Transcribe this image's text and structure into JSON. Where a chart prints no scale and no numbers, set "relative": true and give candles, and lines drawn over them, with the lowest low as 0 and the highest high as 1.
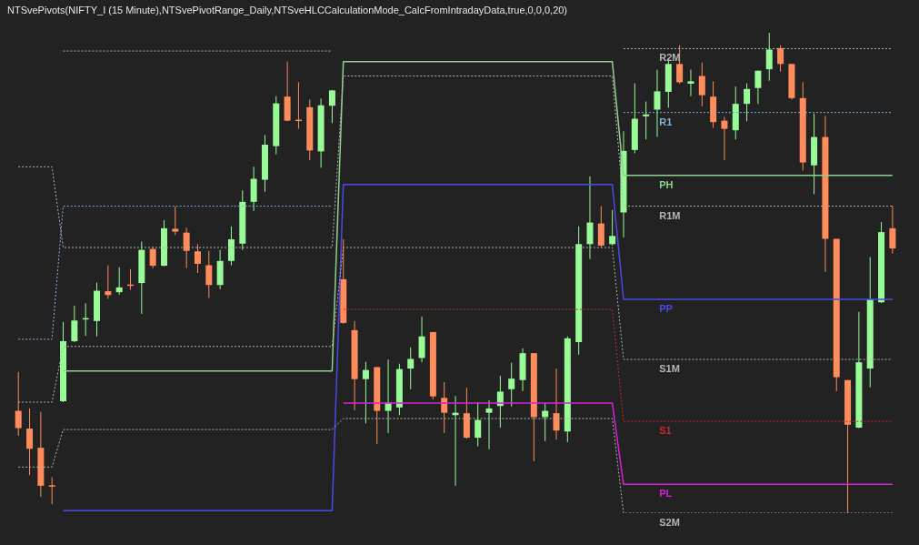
{
  "chart_data": {
    "type": "candlestick",
    "title": "NTSvePivots(NIFTY_I (15 Minute),NTSvePivotRange_Daily,NTSveHLCCalculationMode_CalcFromIntradayData,true,0,0,0,20)",
    "relative": true,
    "categories": [
      null,
      null,
      null,
      null,
      null,
      null,
      null,
      null,
      null,
      null,
      null,
      null,
      null,
      null,
      null,
      null,
      null,
      null,
      null,
      null,
      null,
      null,
      null,
      null,
      null,
      null,
      null,
      null,
      null,
      null,
      null,
      null,
      null,
      null,
      null,
      null,
      null,
      null,
      null,
      null,
      null,
      null,
      null,
      null,
      null,
      null,
      null,
      null,
      null,
      null,
      null,
      null,
      null,
      null,
      null,
      null,
      null,
      null,
      null,
      null,
      null,
      null,
      null,
      null,
      null,
      null,
      null,
      null,
      null,
      null,
      null,
      null,
      null,
      null,
      null,
      null,
      null,
      null,
      null
    ],
    "ohlc": [
      [
        0.213,
        0.294,
        0.161,
        0.177
      ],
      [
        0.176,
        0.218,
        0.079,
        0.134
      ],
      [
        0.136,
        0.211,
        0.034,
        0.057
      ],
      [
        0.058,
        0.075,
        0.019,
        0.057
      ],
      [
        0.233,
        0.398,
        0.231,
        0.358
      ],
      [
        0.358,
        0.432,
        0.356,
        0.401
      ],
      [
        0.404,
        0.437,
        0.369,
        0.406
      ],
      [
        0.4,
        0.48,
        0.368,
        0.463
      ],
      [
        0.462,
        0.516,
        0.446,
        0.454
      ],
      [
        0.46,
        0.512,
        0.455,
        0.47
      ],
      [
        0.476,
        0.508,
        0.465,
        0.475
      ],
      [
        0.479,
        0.565,
        0.415,
        0.548
      ],
      [
        0.55,
        0.555,
        0.51,
        0.515
      ],
      [
        0.515,
        0.61,
        0.514,
        0.593
      ],
      [
        0.592,
        0.638,
        0.579,
        0.586
      ],
      [
        0.584,
        0.594,
        0.51,
        0.546
      ],
      [
        0.545,
        0.56,
        0.5,
        0.519
      ],
      [
        0.516,
        0.546,
        0.448,
        0.475
      ],
      [
        0.475,
        0.548,
        0.466,
        0.525
      ],
      [
        0.525,
        0.597,
        0.516,
        0.57
      ],
      [
        0.561,
        0.672,
        0.548,
        0.648
      ],
      [
        0.648,
        0.721,
        0.629,
        0.696
      ],
      [
        0.694,
        0.787,
        0.669,
        0.767
      ],
      [
        0.764,
        0.868,
        0.747,
        0.853
      ],
      [
        0.867,
        0.94,
        0.816,
        0.817
      ],
      [
        0.819,
        0.897,
        0.8,
        0.818
      ],
      [
        0.845,
        0.861,
        0.735,
        0.755
      ],
      [
        0.753,
        0.863,
        0.719,
        0.849
      ],
      [
        0.848,
        0.881,
        0.812,
        0.88
      ],
      [
        0.487,
        0.57,
        0.394,
        0.396
      ],
      [
        0.381,
        0.4,
        0.214,
        0.279
      ],
      [
        0.279,
        0.315,
        0.187,
        0.298
      ],
      [
        0.304,
        0.304,
        0.144,
        0.213
      ],
      [
        0.213,
        0.32,
        0.167,
        0.23
      ],
      [
        0.22,
        0.311,
        0.204,
        0.3
      ],
      [
        0.301,
        0.345,
        0.258,
        0.321
      ],
      [
        0.323,
        0.409,
        0.314,
        0.368
      ],
      [
        0.377,
        0.377,
        0.237,
        0.243
      ],
      [
        0.24,
        0.273,
        0.167,
        0.209
      ],
      [
        0.204,
        0.244,
        0.057,
        0.209
      ],
      [
        0.208,
        0.261,
        0.155,
        0.157
      ],
      [
        0.157,
        0.231,
        0.139,
        0.194
      ],
      [
        0.209,
        0.235,
        0.133,
        0.218
      ],
      [
        0.223,
        0.286,
        0.178,
        0.253
      ],
      [
        0.258,
        0.313,
        0.222,
        0.28
      ],
      [
        0.277,
        0.343,
        0.254,
        0.333
      ],
      [
        0.333,
        0.333,
        0.108,
        0.2
      ],
      [
        0.2,
        0.229,
        0.15,
        0.213
      ],
      [
        0.208,
        0.301,
        0.153,
        0.172
      ],
      [
        0.17,
        0.368,
        0.148,
        0.364
      ],
      [
        0.356,
        0.597,
        0.33,
        0.56
      ],
      [
        0.56,
        0.701,
        0.529,
        0.605
      ],
      [
        0.603,
        0.639,
        0.553,
        0.557
      ],
      [
        0.56,
        0.631,
        0.557,
        0.577
      ],
      [
        0.626,
        0.795,
        0.574,
        0.754
      ],
      [
        0.756,
        0.895,
        0.749,
        0.821
      ],
      [
        0.826,
        0.857,
        0.778,
        0.83
      ],
      [
        0.84,
        0.923,
        0.783,
        0.878
      ],
      [
        0.877,
        0.947,
        0.844,
        0.935
      ],
      [
        0.935,
        0.974,
        0.894,
        0.897
      ],
      [
        0.894,
        0.923,
        0.868,
        0.899
      ],
      [
        0.91,
        0.938,
        0.847,
        0.87
      ],
      [
        0.867,
        0.899,
        0.802,
        0.814
      ],
      [
        0.817,
        0.825,
        0.735,
        0.8
      ],
      [
        0.797,
        0.888,
        0.778,
        0.852
      ],
      [
        0.852,
        0.895,
        0.816,
        0.883
      ],
      [
        0.885,
        0.921,
        0.852,
        0.921
      ],
      [
        0.924,
        1,
        0.9,
        0.965
      ],
      [
        0.968,
        0.974,
        0.919,
        0.935
      ],
      [
        0.935,
        0.935,
        0.861,
        0.864
      ],
      [
        0.864,
        0.897,
        0.713,
        0.73
      ],
      [
        0.724,
        0.832,
        0.664,
        0.783
      ],
      [
        0.783,
        0.827,
        0.502,
        0.571
      ],
      [
        0.571,
        0.571,
        0.254,
        0.283
      ],
      [
        0.277,
        0.277,
        0,
        0.184
      ],
      [
        0.178,
        0.419,
        0.177,
        0.314
      ],
      [
        0.301,
        0.533,
        0.262,
        0.445
      ],
      [
        0.439,
        0.606,
        0.437,
        0.585
      ],
      [
        0.593,
        0.64,
        0.54,
        0.551
      ]
    ],
    "colors": [
      "#ff8c5a",
      "#ff8c5a",
      "#ff8c5a",
      "#ff8c5a",
      "#98fb98",
      "#98fb98",
      "#98fb98",
      "#98fb98",
      "#ff8c5a",
      "#98fb98",
      "#ff8c5a",
      "#98fb98",
      "#ff8c5a",
      "#98fb98",
      "#ff8c5a",
      "#ff8c5a",
      "#ff8c5a",
      "#ff8c5a",
      "#98fb98",
      "#98fb98",
      "#98fb98",
      "#98fb98",
      "#98fb98",
      "#98fb98",
      "#ff8c5a",
      "#ff8c5a",
      "#ff8c5a",
      "#98fb98",
      "#98fb98",
      "#ff8c5a",
      "#ff8c5a",
      "#98fb98",
      "#ff8c5a",
      "#98fb98",
      "#98fb98",
      "#98fb98",
      "#98fb98",
      "#ff8c5a",
      "#ff8c5a",
      "#98fb98",
      "#ff8c5a",
      "#98fb98",
      "#98fb98",
      "#98fb98",
      "#98fb98",
      "#98fb98",
      "#ff8c5a",
      "#98fb98",
      "#ff8c5a",
      "#98fb98",
      "#98fb98",
      "#98fb98",
      "#ff8c5a",
      "#98fb98",
      "#98fb98",
      "#98fb98",
      "#98fb98",
      "#98fb98",
      "#98fb98",
      "#ff8c5a",
      "#98fb98",
      "#ff8c5a",
      "#ff8c5a",
      "#ff8c5a",
      "#98fb98",
      "#98fb98",
      "#98fb98",
      "#98fb98",
      "#ff8c5a",
      "#ff8c5a",
      "#ff8c5a",
      "#98fb98",
      "#ff8c5a",
      "#ff8c5a",
      "#ff8c5a",
      "#98fb98",
      "#98fb98",
      "#98fb98",
      "#ff8c5a"
    ],
    "series": [
      {
        "type": "line",
        "name": "R2M",
        "color": "#b4b4b4",
        "line_style": "dotted",
        "values": [
          null,
          null,
          null,
          null,
          0.962,
          0.962,
          0.962,
          0.962,
          0.962,
          0.962,
          0.962,
          0.962,
          0.962,
          0.962,
          0.962,
          0.962,
          0.962,
          0.962,
          0.962,
          0.962,
          0.962,
          0.962,
          0.962,
          0.962,
          0.962,
          0.962,
          0.962,
          0.962,
          0.962,
          null,
          null,
          null,
          null,
          null,
          null,
          null,
          null,
          null,
          null,
          null,
          null,
          null,
          null,
          null,
          null,
          null,
          null,
          null,
          null,
          null,
          null,
          null,
          null,
          null,
          0.967,
          0.967,
          0.967,
          0.967,
          0.967,
          0.967,
          0.967,
          0.967,
          0.967,
          0.967,
          0.967,
          0.967,
          0.967,
          0.967,
          0.967,
          0.967,
          0.967,
          0.967,
          0.967,
          0.967,
          0.967,
          0.967,
          0.967,
          0.967,
          0.967
        ]
      },
      {
        "type": "line",
        "name": "R1",
        "color": "#7fb2e0",
        "line_style": "dotted",
        "values": [
          0.362,
          0.362,
          0.362,
          0.362,
          0.639,
          0.639,
          0.639,
          0.639,
          0.639,
          0.639,
          0.639,
          0.639,
          0.639,
          0.639,
          0.639,
          0.639,
          0.639,
          0.639,
          0.639,
          0.639,
          0.639,
          0.639,
          0.639,
          0.639,
          0.639,
          0.639,
          0.639,
          0.639,
          0.639,
          null,
          null,
          null,
          null,
          null,
          null,
          null,
          null,
          null,
          null,
          null,
          null,
          null,
          null,
          null,
          null,
          null,
          null,
          null,
          null,
          null,
          null,
          null,
          null,
          null,
          0.834,
          0.834,
          0.834,
          0.834,
          0.834,
          0.834,
          0.834,
          0.834,
          0.834,
          0.834,
          0.834,
          0.834,
          0.834,
          0.834,
          0.834,
          0.834,
          0.834,
          0.834,
          0.834,
          0.834,
          0.834,
          0.834,
          0.834,
          0.834,
          0.834
        ]
      },
      {
        "type": "line",
        "name": "PH",
        "color": "#8fd18f",
        "line_style": "solid",
        "values": [
          null,
          null,
          null,
          null,
          0.296,
          0.296,
          0.296,
          0.296,
          0.296,
          0.296,
          0.296,
          0.296,
          0.296,
          0.296,
          0.296,
          0.296,
          0.296,
          0.296,
          0.296,
          0.296,
          0.296,
          0.296,
          0.296,
          0.296,
          0.296,
          0.296,
          0.296,
          0.296,
          0.296,
          0.94,
          0.94,
          0.94,
          0.94,
          0.94,
          0.94,
          0.94,
          0.94,
          0.94,
          0.94,
          0.94,
          0.94,
          0.94,
          0.94,
          0.94,
          0.94,
          0.94,
          0.94,
          0.94,
          0.94,
          0.94,
          0.94,
          0.94,
          0.94,
          0.94,
          0.703,
          0.703,
          0.703,
          0.703,
          0.703,
          0.703,
          0.703,
          0.703,
          0.703,
          0.703,
          0.703,
          0.703,
          0.703,
          0.703,
          0.703,
          0.703,
          0.703,
          0.703,
          0.703,
          0.703,
          0.703,
          0.703,
          0.703,
          0.703,
          0.703
        ]
      },
      {
        "type": "line",
        "name": "R1M",
        "color": "#b4b4b4",
        "line_style": "dotted",
        "values": [
          0.721,
          0.721,
          0.721,
          0.721,
          0.553,
          0.553,
          0.553,
          0.553,
          0.553,
          0.553,
          0.553,
          0.553,
          0.553,
          0.553,
          0.553,
          0.553,
          0.553,
          0.553,
          0.553,
          0.553,
          0.553,
          0.553,
          0.553,
          0.553,
          0.553,
          0.553,
          0.553,
          0.553,
          0.553,
          0.91,
          0.91,
          0.91,
          0.91,
          0.91,
          0.91,
          0.91,
          0.91,
          0.91,
          0.91,
          0.91,
          0.91,
          0.91,
          0.91,
          0.91,
          0.91,
          0.91,
          0.91,
          0.91,
          0.91,
          0.91,
          0.91,
          0.91,
          0.91,
          0.91,
          0.639,
          0.639,
          0.639,
          0.639,
          0.639,
          0.639,
          0.639,
          0.639,
          0.639,
          0.639,
          0.639,
          0.639,
          0.639,
          0.639,
          0.639,
          0.639,
          0.639,
          0.639,
          0.639,
          0.639,
          0.639,
          0.639,
          0.639,
          0.639,
          0.639
        ]
      },
      {
        "type": "line",
        "name": "PP",
        "color": "#4a4ae6",
        "line_style": "solid",
        "values": [
          null,
          null,
          null,
          null,
          0.005,
          0.005,
          0.005,
          0.005,
          0.005,
          0.005,
          0.005,
          0.005,
          0.005,
          0.005,
          0.005,
          0.005,
          0.005,
          0.005,
          0.005,
          0.005,
          0.005,
          0.005,
          0.005,
          0.005,
          0.005,
          0.005,
          0.005,
          0.005,
          0.005,
          0.684,
          0.684,
          0.684,
          0.684,
          0.684,
          0.684,
          0.684,
          0.684,
          0.684,
          0.684,
          0.684,
          0.684,
          0.684,
          0.684,
          0.684,
          0.684,
          0.684,
          0.684,
          0.684,
          0.684,
          0.684,
          0.684,
          0.684,
          0.684,
          0.684,
          0.445,
          0.445,
          0.445,
          0.445,
          0.445,
          0.445,
          0.445,
          0.445,
          0.445,
          0.445,
          0.445,
          0.445,
          0.445,
          0.445,
          0.445,
          0.445,
          0.445,
          0.445,
          0.445,
          0.445,
          0.445,
          0.445,
          0.445,
          0.445,
          0.445
        ]
      },
      {
        "type": "line",
        "name": "S1M",
        "color": "#b4b4b4",
        "line_style": "dotted",
        "values": [
          0.231,
          0.231,
          0.231,
          0.231,
          0.347,
          0.347,
          0.347,
          0.347,
          0.347,
          0.347,
          0.347,
          0.347,
          0.347,
          0.347,
          0.347,
          0.347,
          0.347,
          0.347,
          0.347,
          0.347,
          0.347,
          0.347,
          0.347,
          0.347,
          0.347,
          0.347,
          0.347,
          0.347,
          0.347,
          0.553,
          0.553,
          0.553,
          0.553,
          0.553,
          0.553,
          0.553,
          0.553,
          0.553,
          0.553,
          0.553,
          0.553,
          0.553,
          0.553,
          0.553,
          0.553,
          0.553,
          0.553,
          0.553,
          0.553,
          0.553,
          0.553,
          0.553,
          0.553,
          0.553,
          0.32,
          0.32,
          0.32,
          0.32,
          0.32,
          0.32,
          0.32,
          0.32,
          0.32,
          0.32,
          0.32,
          0.32,
          0.32,
          0.32,
          0.32,
          0.32,
          0.32,
          0.32,
          0.32,
          0.32,
          0.32,
          0.32,
          0.32,
          0.32,
          0.32
        ]
      },
      {
        "type": "line",
        "name": "S1",
        "color": "#c8282d",
        "line_style": "dotted",
        "values": [
          null,
          null,
          null,
          null,
          null,
          null,
          null,
          null,
          null,
          null,
          null,
          null,
          null,
          null,
          null,
          null,
          null,
          null,
          null,
          null,
          null,
          null,
          null,
          null,
          null,
          null,
          null,
          null,
          null,
          0.424,
          0.424,
          0.424,
          0.424,
          0.424,
          0.424,
          0.424,
          0.424,
          0.424,
          0.424,
          0.424,
          0.424,
          0.424,
          0.424,
          0.424,
          0.424,
          0.424,
          0.424,
          0.424,
          0.424,
          0.424,
          0.424,
          0.424,
          0.424,
          0.424,
          0.191,
          0.191,
          0.191,
          0.191,
          0.191,
          0.191,
          0.191,
          0.191,
          0.191,
          0.191,
          0.191,
          0.191,
          0.191,
          0.191,
          0.191,
          0.191,
          0.191,
          0.191,
          0.191,
          0.191,
          0.191,
          0.191,
          0.191,
          0.191,
          0.191
        ]
      },
      {
        "type": "line",
        "name": "PL",
        "color": "#d423d4",
        "line_style": "solid",
        "values": [
          null,
          null,
          null,
          null,
          null,
          null,
          null,
          null,
          null,
          null,
          null,
          null,
          null,
          null,
          null,
          null,
          null,
          null,
          null,
          null,
          null,
          null,
          null,
          null,
          null,
          null,
          null,
          null,
          null,
          0.229,
          0.229,
          0.229,
          0.229,
          0.229,
          0.229,
          0.229,
          0.229,
          0.229,
          0.229,
          0.229,
          0.229,
          0.229,
          0.229,
          0.229,
          0.229,
          0.229,
          0.229,
          0.229,
          0.229,
          0.229,
          0.229,
          0.229,
          0.229,
          0.229,
          0.06,
          0.06,
          0.06,
          0.06,
          0.06,
          0.06,
          0.06,
          0.06,
          0.06,
          0.06,
          0.06,
          0.06,
          0.06,
          0.06,
          0.06,
          0.06,
          0.06,
          0.06,
          0.06,
          0.06,
          0.06,
          0.06,
          0.06,
          0.06,
          0.06
        ]
      },
      {
        "type": "line",
        "name": "S2M",
        "color": "#b4b4b4",
        "line_style": "dotted",
        "values": [
          0.096,
          0.096,
          0.096,
          0.096,
          0.174,
          0.174,
          0.174,
          0.174,
          0.174,
          0.174,
          0.174,
          0.174,
          0.174,
          0.174,
          0.174,
          0.174,
          0.174,
          0.174,
          0.174,
          0.174,
          0.174,
          0.174,
          0.174,
          0.174,
          0.174,
          0.174,
          0.174,
          0.174,
          0.174,
          0.197,
          0.197,
          0.197,
          0.197,
          0.197,
          0.197,
          0.197,
          0.197,
          0.197,
          0.197,
          0.197,
          0.197,
          0.197,
          0.197,
          0.197,
          0.197,
          0.197,
          0.197,
          0.197,
          0.197,
          0.197,
          0.197,
          0.197,
          0.197,
          0.197,
          0,
          0,
          0,
          0,
          0,
          0,
          0,
          0,
          0,
          0,
          0,
          0,
          0,
          0,
          0,
          0,
          0,
          0,
          0,
          0,
          0,
          0,
          0,
          0,
          0
        ]
      }
    ]
  }
}
